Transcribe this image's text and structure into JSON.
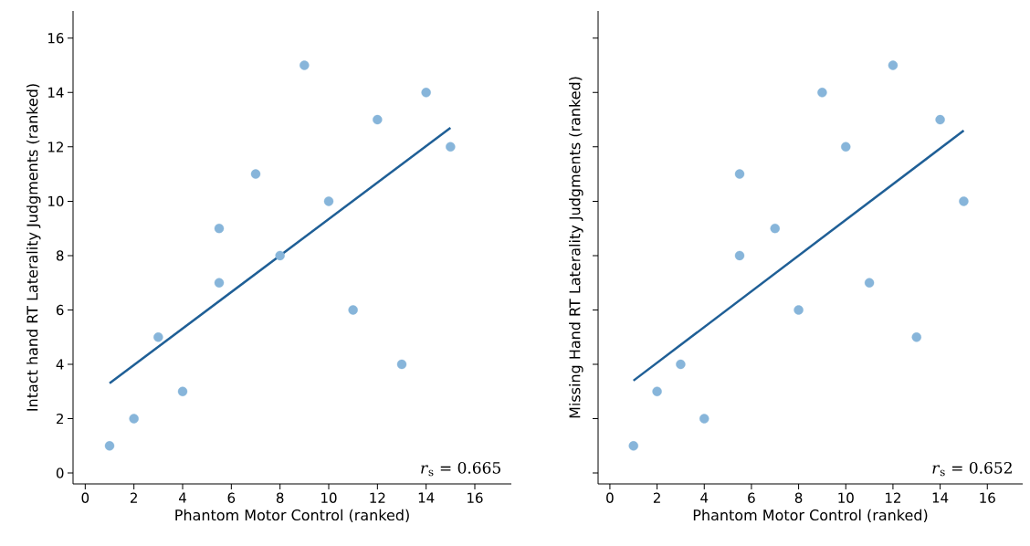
{
  "chart_data": [
    {
      "type": "scatter",
      "xlabel": "Phantom Motor Control (ranked)",
      "ylabel": "Intact hand RT Laterality Judgments (ranked)",
      "xlim": [
        -0.5,
        17.5
      ],
      "ylim": [
        -0.4,
        17
      ],
      "xticks": [
        0,
        2,
        4,
        6,
        8,
        10,
        12,
        14,
        16
      ],
      "yticks": [
        0,
        2,
        4,
        6,
        8,
        10,
        12,
        14,
        16
      ],
      "grid": false,
      "annotations": [
        "*r*$_{s}$ = 0.665"
      ],
      "series": [
        {
          "color": "#87b5da",
          "marker": "circle",
          "x": [
            1,
            2,
            3,
            4,
            5.5,
            5.5,
            7,
            8,
            9,
            10,
            11,
            12,
            13,
            14,
            15
          ],
          "values": [
            1,
            2,
            5,
            3,
            7,
            9,
            11,
            8,
            15,
            10,
            6,
            13,
            4,
            14,
            12
          ]
        },
        {
          "type": "line",
          "color": "#1f5f96",
          "marker": "none",
          "x": [
            1,
            15
          ],
          "values": [
            3.3,
            12.7
          ]
        }
      ]
    },
    {
      "type": "scatter",
      "xlabel": "Phantom Motor Control (ranked)",
      "ylabel": "Missing Hand RT Laterality Judgments (ranked)",
      "xlim": [
        -0.5,
        17.5
      ],
      "ylim": [
        -0.4,
        17
      ],
      "xticks": [
        0,
        2,
        4,
        6,
        8,
        10,
        12,
        14,
        16
      ],
      "yticks": [
        0,
        2,
        4,
        6,
        8,
        10,
        12,
        14,
        16
      ],
      "tick_labels": "x",
      "grid": false,
      "annotations": [
        "*r*$_{s}$ = 0.652"
      ],
      "series": [
        {
          "color": "#87b5da",
          "marker": "circle",
          "x": [
            1,
            2,
            3,
            4,
            5.5,
            5.5,
            7,
            8,
            9,
            10,
            11,
            12,
            13,
            14,
            15
          ],
          "values": [
            1,
            3,
            4,
            2,
            8,
            11,
            9,
            6,
            14,
            12,
            7,
            15,
            5,
            13,
            10
          ]
        },
        {
          "type": "line",
          "color": "#1f5f96",
          "marker": "none",
          "x": [
            1,
            15
          ],
          "values": [
            3.4,
            12.6
          ]
        }
      ]
    }
  ]
}
